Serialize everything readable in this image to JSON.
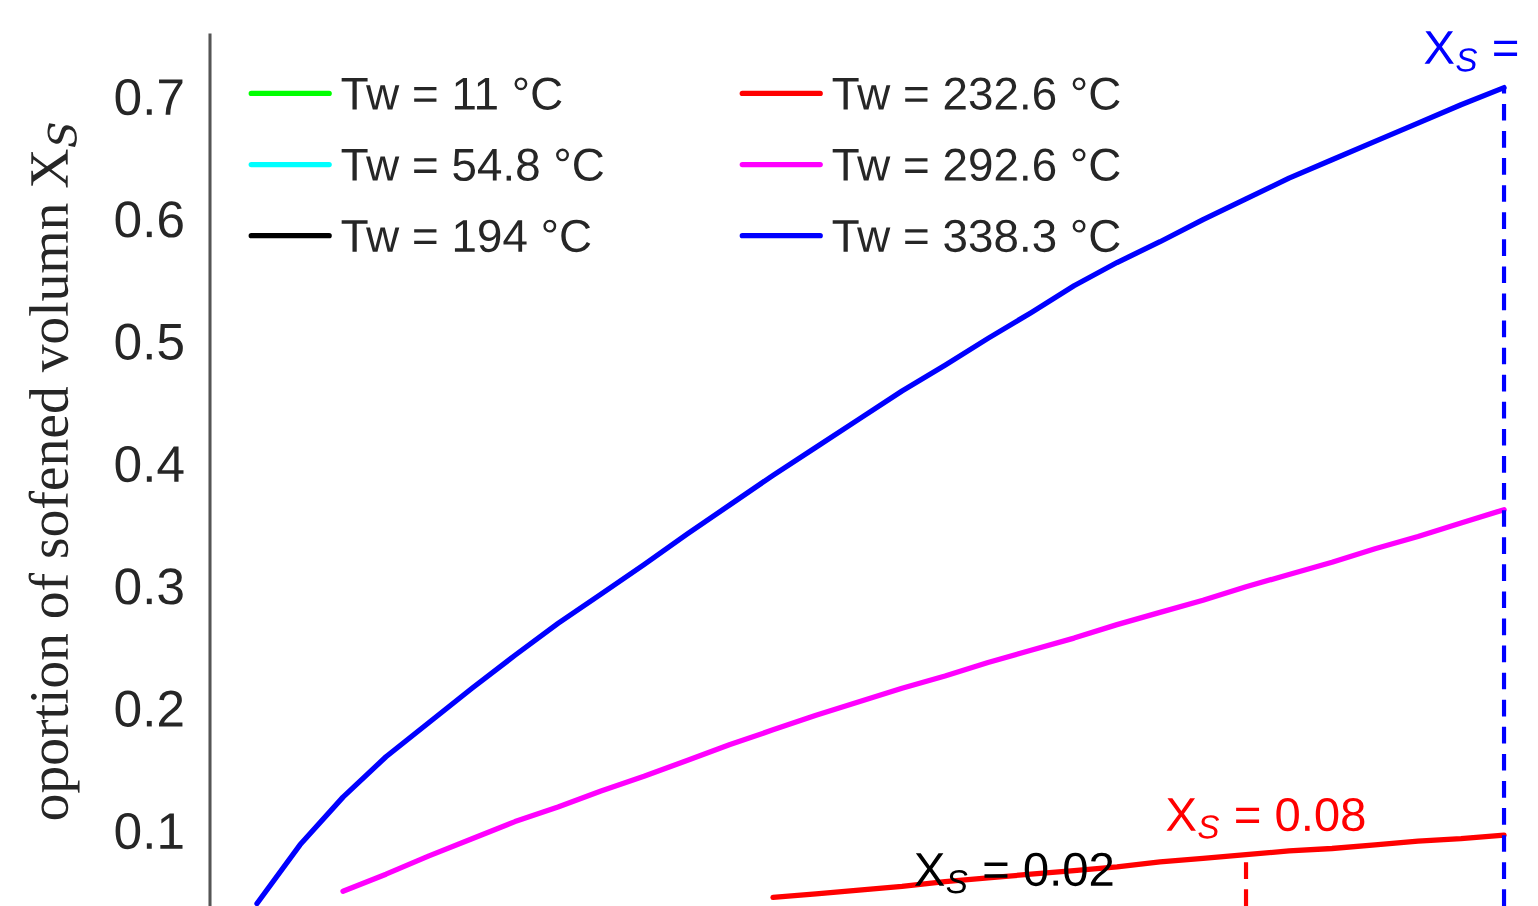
{
  "chart_data": {
    "type": "line",
    "ylabel": "oportion of sofened volumn X$_{S}$",
    "categories": [
      null,
      null,
      null,
      null,
      null,
      null,
      null,
      null,
      null,
      null,
      null,
      null,
      null,
      null,
      null,
      null,
      null,
      null,
      null,
      null,
      null,
      null,
      null,
      null,
      null,
      null,
      null,
      null,
      null,
      null,
      null
    ],
    "series": [
      {
        "name": "Tw = 11 °C",
        "color": "#00ff00",
        "values": [
          null,
          null,
          null,
          null,
          null,
          null,
          null,
          null,
          null,
          null,
          null,
          null,
          null,
          null,
          null,
          null,
          null,
          null,
          null,
          null,
          null,
          null,
          null,
          null,
          null,
          null,
          null,
          null,
          null,
          null,
          null
        ]
      },
      {
        "name": "Tw = 54.8 °C",
        "color": "#00ffff",
        "values": [
          null,
          null,
          null,
          null,
          null,
          null,
          null,
          null,
          null,
          null,
          null,
          null,
          null,
          null,
          null,
          null,
          null,
          null,
          null,
          null,
          null,
          null,
          null,
          null,
          null,
          null,
          null,
          null,
          null,
          null,
          null
        ]
      },
      {
        "name": "Tw = 194 °C",
        "color": "#000000",
        "values": [
          null,
          null,
          null,
          null,
          null,
          null,
          null,
          null,
          null,
          null,
          null,
          null,
          null,
          null,
          null,
          null,
          null,
          null,
          null,
          null,
          null,
          null,
          null,
          null,
          null,
          null,
          null,
          null,
          null,
          null,
          null
        ]
      },
      {
        "name": "Tw = 232.6 °C",
        "color": "#ff0000",
        "values": [
          null,
          null,
          null,
          null,
          null,
          null,
          null,
          null,
          null,
          null,
          null,
          null,
          null,
          0.045,
          0.048,
          0.051,
          0.054,
          0.058,
          0.061,
          0.064,
          0.067,
          0.07,
          0.074,
          0.077,
          0.08,
          0.083,
          0.085,
          0.088,
          0.091,
          0.093,
          0.096
        ]
      },
      {
        "name": "Tw = 292.6 °C",
        "color": "#ff00ff",
        "values": [
          null,
          null,
          null,
          0.05,
          0.064,
          0.079,
          0.093,
          0.107,
          0.119,
          0.132,
          0.144,
          0.157,
          0.17,
          0.182,
          0.194,
          0.205,
          0.216,
          0.226,
          0.237,
          0.247,
          0.257,
          0.268,
          0.278,
          0.288,
          0.299,
          0.309,
          0.319,
          0.33,
          0.34,
          0.351,
          0.362
        ]
      },
      {
        "name": "Tw = 338.3 °C",
        "color": "#0000ff",
        "values": [
          null,
          0.04,
          0.088,
          0.127,
          0.16,
          0.188,
          0.216,
          0.243,
          0.269,
          0.293,
          0.317,
          0.342,
          0.366,
          0.39,
          0.413,
          0.436,
          0.459,
          0.48,
          0.502,
          0.523,
          0.545,
          0.564,
          0.581,
          0.599,
          0.616,
          0.633,
          0.648,
          0.663,
          0.678,
          0.693,
          0.707
        ]
      }
    ],
    "ylim": [
      0.038,
      0.75
    ],
    "yticks": [
      0.1,
      0.2,
      0.3,
      0.4,
      0.5,
      0.6,
      0.7
    ],
    "tick_labels": "y",
    "legend": "top left",
    "annotations": [
      "X$_{S}$ = 0.02",
      "X$_{S}$ = 0.08",
      "X$_{S}$ ="
    ]
  }
}
